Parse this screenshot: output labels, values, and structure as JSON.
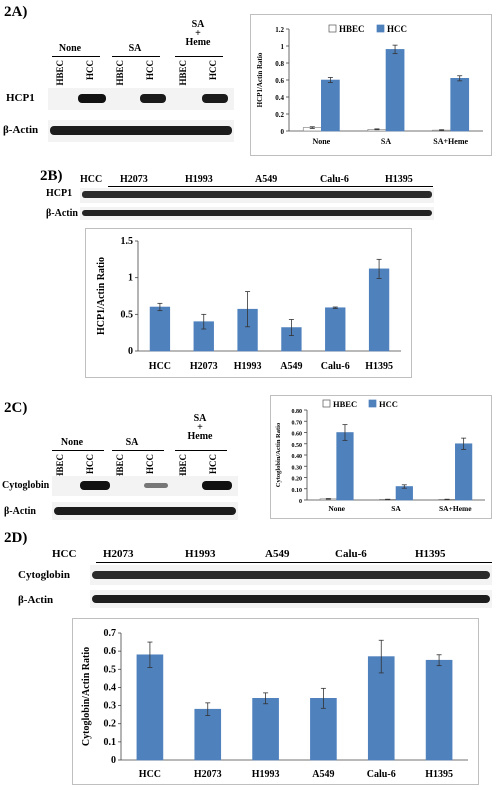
{
  "panels": {
    "a": {
      "label": "2A)",
      "groups": [
        "None",
        "SA",
        "SA\n+\nHeme"
      ],
      "lanes": [
        "HBEC",
        "HCC",
        "HBEC",
        "HCC",
        "HBEC",
        "HCC"
      ],
      "rows": [
        "HCP1",
        "β-Actin"
      ]
    },
    "b": {
      "label": "2B)",
      "lanes": [
        "HCC",
        "H2073",
        "H1993",
        "A549",
        "Calu-6",
        "H1395"
      ],
      "rows": [
        "HCP1",
        "β-Actin"
      ]
    },
    "c": {
      "label": "2C)",
      "groups": [
        "None",
        "SA",
        "SA\n+\nHeme"
      ],
      "lanes": [
        "HBEC",
        "HCC",
        "HBEC",
        "HCC",
        "HBEC",
        "HCC"
      ],
      "rows": [
        "Cytoglobin",
        "β-Actin"
      ]
    },
    "d": {
      "label": "2D)",
      "lanes": [
        "HCC",
        "H2073",
        "H1993",
        "A549",
        "Calu-6",
        "H1395"
      ],
      "rows": [
        "Cytoglobin",
        "β-Actin"
      ]
    }
  },
  "chart_data": [
    {
      "type": "bar",
      "panel": "2A",
      "categories": [
        "None",
        "SA",
        "SA+Heme"
      ],
      "series": [
        {
          "name": "HBEC",
          "values": [
            0.04,
            0.02,
            0.01
          ],
          "errors": [
            0.01,
            0.005,
            0.005
          ],
          "color": "#ffffff"
        },
        {
          "name": "HCC",
          "values": [
            0.6,
            0.96,
            0.62
          ],
          "errors": [
            0.03,
            0.05,
            0.03
          ],
          "color": "#4f81bd"
        }
      ],
      "title": "",
      "xlabel": "",
      "ylabel": "HCP1/Actin Ratio",
      "ylim": [
        0,
        1.2
      ],
      "yticks": [
        "0",
        "0.2",
        "0.4",
        "0.6",
        "0.8",
        "1",
        "1.2"
      ],
      "legend": "top"
    },
    {
      "type": "bar",
      "panel": "2B",
      "categories": [
        "HCC",
        "H2073",
        "H1993",
        "A549",
        "Calu-6",
        "H1395"
      ],
      "series": [
        {
          "values": [
            0.6,
            0.4,
            0.57,
            0.32,
            0.59,
            1.12
          ],
          "errors": [
            0.05,
            0.1,
            0.24,
            0.11,
            0.01,
            0.13
          ],
          "color": "#4f81bd"
        }
      ],
      "title": "",
      "xlabel": "",
      "ylabel": "HCP1/Actin Ratio",
      "ylim": [
        0,
        1.5
      ],
      "yticks": [
        "0",
        "0.5",
        "1",
        "1.5"
      ]
    },
    {
      "type": "bar",
      "panel": "2C",
      "categories": [
        "None",
        "SA",
        "SA+Heme"
      ],
      "series": [
        {
          "name": "HBEC",
          "values": [
            0.01,
            0.005,
            0.005
          ],
          "errors": [
            0.003,
            0.002,
            0.002
          ],
          "color": "#ffffff"
        },
        {
          "name": "HCC",
          "values": [
            0.6,
            0.12,
            0.5
          ],
          "errors": [
            0.07,
            0.015,
            0.05
          ],
          "color": "#4f81bd"
        }
      ],
      "title": "",
      "xlabel": "",
      "ylabel": "Cytoglobin/Actin Ratio",
      "ylim": [
        0,
        0.8
      ],
      "yticks": [
        "0",
        "0.10",
        "0.20",
        "0.30",
        "0.40",
        "0.50",
        "0.60",
        "0.70",
        "0.80"
      ],
      "legend": "top"
    },
    {
      "type": "bar",
      "panel": "2D",
      "categories": [
        "HCC",
        "H2073",
        "H1993",
        "A549",
        "Calu-6",
        "H1395"
      ],
      "series": [
        {
          "values": [
            0.58,
            0.28,
            0.34,
            0.34,
            0.57,
            0.55
          ],
          "errors": [
            0.07,
            0.035,
            0.03,
            0.055,
            0.09,
            0.03
          ],
          "color": "#4f81bd"
        }
      ],
      "title": "",
      "xlabel": "",
      "ylabel": "Cytoglobin/Actin Ratio",
      "ylim": [
        0,
        0.7
      ],
      "yticks": [
        "0",
        "0.1",
        "0.2",
        "0.3",
        "0.4",
        "0.5",
        "0.6",
        "0.7"
      ]
    }
  ]
}
